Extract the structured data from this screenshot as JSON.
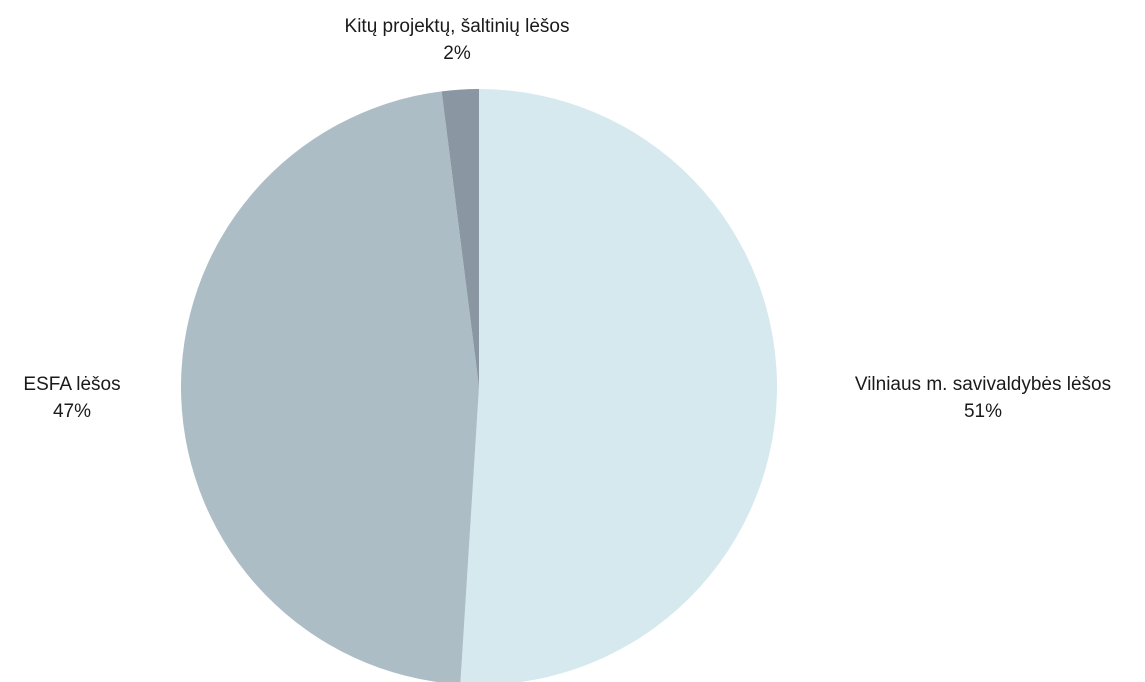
{
  "chart_data": {
    "type": "pie",
    "slices": [
      {
        "label": "Vilniaus m. savivaldybės lėšos",
        "value": 51,
        "display": "51%",
        "color": "#d5e9ee"
      },
      {
        "label": "ESFA lėšos",
        "value": 47,
        "display": "47%",
        "color": "#adbdc6"
      },
      {
        "label": "Kitų projektų, šaltinių lėšos",
        "value": 2,
        "display": "2%",
        "color": "#8a96a1"
      }
    ],
    "start_angle": "12 o'clock",
    "direction": "clockwise",
    "legend": "none"
  }
}
